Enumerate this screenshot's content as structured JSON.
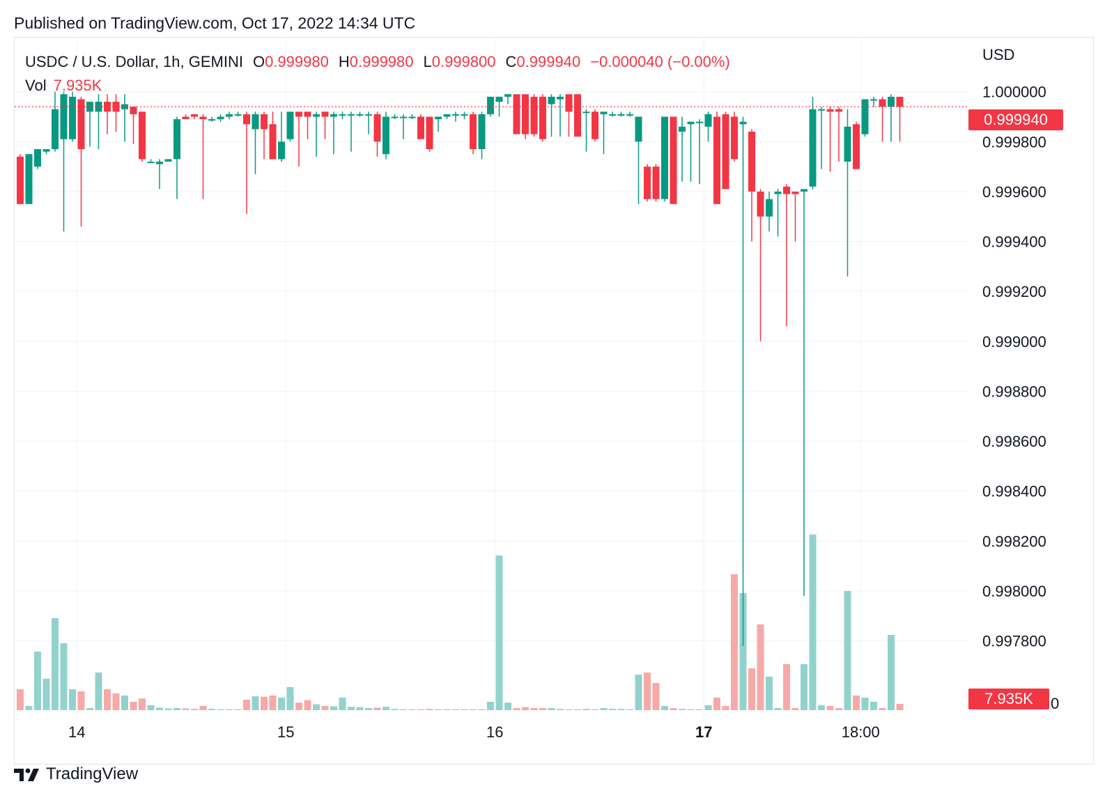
{
  "header": {
    "published_text": "Published on TradingView.com, Oct 17, 2022 14:34 UTC"
  },
  "legend": {
    "symbol": "USDC / U.S. Dollar, 1h, GEMINI",
    "open_label": "O",
    "open_value": "0.999980",
    "high_label": "H",
    "high_value": "0.999980",
    "low_label": "L",
    "low_value": "0.999800",
    "close_label": "C",
    "close_value": "0.999940",
    "change": "−0.000040 (−0.00%)",
    "volume_label": "Vol",
    "volume_value": "7.935K"
  },
  "axis": {
    "currency": "USD",
    "last_price_tag": "0.999940",
    "volume_tag": "7.935K"
  },
  "footer": {
    "brand": "TradingView"
  },
  "colors": {
    "up": "#089981",
    "down": "#f23645",
    "up_volume": "#92d2cc",
    "down_volume": "#f7a9a7",
    "grid": "#f0f3fa"
  },
  "chart_data": {
    "type": "candlestick",
    "timeframe": "1h",
    "y_ticks": [
      "1.000000",
      "0.999800",
      "0.999600",
      "0.999400",
      "0.999200",
      "0.999000",
      "0.998800",
      "0.998600",
      "0.998400",
      "0.998200",
      "0.998000",
      "0.997800"
    ],
    "y_range": [
      0.99773,
      1.00002
    ],
    "volume_zero_label": "0",
    "x_ticks": [
      {
        "label": "14",
        "index": 6.5,
        "bold": false
      },
      {
        "label": "15",
        "index": 30.5,
        "bold": false
      },
      {
        "label": "16",
        "index": 54.5,
        "bold": false
      },
      {
        "label": "17",
        "index": 78.5,
        "bold": true
      },
      {
        "label": "18:00",
        "index": 96.5,
        "bold": false
      }
    ],
    "last_price": 0.99994,
    "candles": [
      {
        "o": 0.99974,
        "h": 0.99975,
        "l": 0.99955,
        "c": 0.99955,
        "v": 0.5
      },
      {
        "o": 0.99955,
        "h": 0.99975,
        "l": 0.99955,
        "c": 0.99975,
        "v": 0.1
      },
      {
        "o": 0.9997,
        "h": 0.99977,
        "l": 0.99969,
        "c": 0.99977,
        "v": 1.4
      },
      {
        "o": 0.99976,
        "h": 0.99977,
        "l": 0.99975,
        "c": 0.99977,
        "v": 0.75
      },
      {
        "o": 0.99977,
        "h": 1.0,
        "l": 0.99976,
        "c": 0.99993,
        "v": 2.2
      },
      {
        "o": 0.99981,
        "h": 1.0,
        "l": 0.99944,
        "c": 0.99999,
        "v": 1.6
      },
      {
        "o": 0.99981,
        "h": 1.0,
        "l": 0.9998,
        "c": 0.99998,
        "v": 0.5
      },
      {
        "o": 0.99997,
        "h": 0.99998,
        "l": 0.99946,
        "c": 0.99977,
        "v": 0.45
      },
      {
        "o": 0.99992,
        "h": 0.99996,
        "l": 0.99978,
        "c": 0.99996,
        "v": 0.05
      },
      {
        "o": 0.99992,
        "h": 0.99999,
        "l": 0.99977,
        "c": 0.99996,
        "v": 0.9
      },
      {
        "o": 0.99996,
        "h": 0.99999,
        "l": 0.99983,
        "c": 0.99992,
        "v": 0.5
      },
      {
        "o": 0.99996,
        "h": 0.99999,
        "l": 0.99984,
        "c": 0.99992,
        "v": 0.4
      },
      {
        "o": 0.99993,
        "h": 0.99999,
        "l": 0.9998,
        "c": 0.99995,
        "v": 0.35
      },
      {
        "o": 0.99994,
        "h": 0.99994,
        "l": 0.99979,
        "c": 0.99991,
        "v": 0.2
      },
      {
        "o": 0.99992,
        "h": 0.99992,
        "l": 0.99972,
        "c": 0.99973,
        "v": 0.28
      },
      {
        "o": 0.99972,
        "h": 0.99973,
        "l": 0.99972,
        "c": 0.99972,
        "v": 0.12
      },
      {
        "o": 0.99971,
        "h": 0.99973,
        "l": 0.99961,
        "c": 0.99972,
        "v": 0.06
      },
      {
        "o": 0.99972,
        "h": 0.99973,
        "l": 0.99972,
        "c": 0.99973,
        "v": 0.04
      },
      {
        "o": 0.99973,
        "h": 0.9999,
        "l": 0.99957,
        "c": 0.99989,
        "v": 0.05
      },
      {
        "o": 0.9999,
        "h": 0.99991,
        "l": 0.99989,
        "c": 0.99989,
        "v": 0.04
      },
      {
        "o": 0.99991,
        "h": 0.99991,
        "l": 0.99989,
        "c": 0.9999,
        "v": 0.03
      },
      {
        "o": 0.9999,
        "h": 0.99991,
        "l": 0.99957,
        "c": 0.99989,
        "v": 0.1
      },
      {
        "o": 0.99989,
        "h": 0.9999,
        "l": 0.99988,
        "c": 0.99989,
        "v": 0.03
      },
      {
        "o": 0.99989,
        "h": 0.99991,
        "l": 0.99988,
        "c": 0.9999,
        "v": 0.02
      },
      {
        "o": 0.9999,
        "h": 0.99992,
        "l": 0.99989,
        "c": 0.99991,
        "v": 0.02
      },
      {
        "o": 0.99991,
        "h": 0.99992,
        "l": 0.9999,
        "c": 0.99991,
        "v": 0.02
      },
      {
        "o": 0.99991,
        "h": 0.99992,
        "l": 0.99951,
        "c": 0.99987,
        "v": 0.25
      },
      {
        "o": 0.99985,
        "h": 0.99992,
        "l": 0.99967,
        "c": 0.99991,
        "v": 0.33
      },
      {
        "o": 0.99991,
        "h": 0.99992,
        "l": 0.99973,
        "c": 0.99985,
        "v": 0.32
      },
      {
        "o": 0.99987,
        "h": 0.99992,
        "l": 0.99973,
        "c": 0.99973,
        "v": 0.35
      },
      {
        "o": 0.99973,
        "h": 0.99992,
        "l": 0.99972,
        "c": 0.9998,
        "v": 0.3
      },
      {
        "o": 0.99981,
        "h": 0.99992,
        "l": 0.9998,
        "c": 0.99992,
        "v": 0.55
      },
      {
        "o": 0.99992,
        "h": 0.99992,
        "l": 0.9997,
        "c": 0.9999,
        "v": 0.18
      },
      {
        "o": 0.99992,
        "h": 0.99992,
        "l": 0.99981,
        "c": 0.9999,
        "v": 0.24
      },
      {
        "o": 0.9999,
        "h": 0.99992,
        "l": 0.99974,
        "c": 0.99991,
        "v": 0.14
      },
      {
        "o": 0.99992,
        "h": 0.99992,
        "l": 0.99981,
        "c": 0.9999,
        "v": 0.1
      },
      {
        "o": 0.9999,
        "h": 0.99992,
        "l": 0.99975,
        "c": 0.99991,
        "v": 0.09
      },
      {
        "o": 0.99991,
        "h": 0.99992,
        "l": 0.99989,
        "c": 0.99991,
        "v": 0.3
      },
      {
        "o": 0.99991,
        "h": 0.99992,
        "l": 0.99976,
        "c": 0.99991,
        "v": 0.08
      },
      {
        "o": 0.99991,
        "h": 0.99992,
        "l": 0.9999,
        "c": 0.99991,
        "v": 0.07
      },
      {
        "o": 0.99991,
        "h": 0.99992,
        "l": 0.99983,
        "c": 0.99991,
        "v": 0.05
      },
      {
        "o": 0.99991,
        "h": 0.99992,
        "l": 0.99974,
        "c": 0.9998,
        "v": 0.06
      },
      {
        "o": 0.99975,
        "h": 0.99992,
        "l": 0.99973,
        "c": 0.9999,
        "v": 0.08
      },
      {
        "o": 0.9999,
        "h": 0.99991,
        "l": 0.99989,
        "c": 0.9999,
        "v": 0.03
      },
      {
        "o": 0.9999,
        "h": 0.99991,
        "l": 0.99981,
        "c": 0.9999,
        "v": 0.02
      },
      {
        "o": 0.9999,
        "h": 0.99991,
        "l": 0.99989,
        "c": 0.9999,
        "v": 0.02
      },
      {
        "o": 0.9999,
        "h": 0.99991,
        "l": 0.99982,
        "c": 0.99981,
        "v": 0.02
      },
      {
        "o": 0.9999,
        "h": 0.9999,
        "l": 0.99976,
        "c": 0.99977,
        "v": 0.03
      },
      {
        "o": 0.99989,
        "h": 0.9999,
        "l": 0.99984,
        "c": 0.9999,
        "v": 0.02
      },
      {
        "o": 0.9999,
        "h": 0.99991,
        "l": 0.99989,
        "c": 0.99991,
        "v": 0.02
      },
      {
        "o": 0.99991,
        "h": 0.99992,
        "l": 0.99988,
        "c": 0.99991,
        "v": 0.02
      },
      {
        "o": 0.99991,
        "h": 0.99992,
        "l": 0.99989,
        "c": 0.99991,
        "v": 0.02
      },
      {
        "o": 0.99991,
        "h": 0.99992,
        "l": 0.99975,
        "c": 0.99977,
        "v": 0.02
      },
      {
        "o": 0.99977,
        "h": 0.99992,
        "l": 0.99973,
        "c": 0.99991,
        "v": 0.02
      },
      {
        "o": 0.99991,
        "h": 0.99998,
        "l": 0.9999,
        "c": 0.99998,
        "v": 0.2
      },
      {
        "o": 0.99996,
        "h": 0.99998,
        "l": 0.9999,
        "c": 0.99998,
        "v": 3.7
      },
      {
        "o": 0.99998,
        "h": 0.99999,
        "l": 0.99995,
        "c": 0.99999,
        "v": 0.18
      },
      {
        "o": 0.99999,
        "h": 0.99999,
        "l": 0.99983,
        "c": 0.99983,
        "v": 0.05
      },
      {
        "o": 0.99999,
        "h": 0.99999,
        "l": 0.99981,
        "c": 0.99983,
        "v": 0.07
      },
      {
        "o": 0.99998,
        "h": 0.99999,
        "l": 0.99982,
        "c": 0.99983,
        "v": 0.05
      },
      {
        "o": 0.99998,
        "h": 0.99999,
        "l": 0.9998,
        "c": 0.99981,
        "v": 0.05
      },
      {
        "o": 0.99995,
        "h": 0.99999,
        "l": 0.99982,
        "c": 0.99998,
        "v": 0.05
      },
      {
        "o": 0.99997,
        "h": 0.99999,
        "l": 0.99982,
        "c": 0.99998,
        "v": 0.03
      },
      {
        "o": 0.99999,
        "h": 0.99999,
        "l": 0.99982,
        "c": 0.99992,
        "v": 0.02
      },
      {
        "o": 0.99999,
        "h": 0.99999,
        "l": 0.99982,
        "c": 0.99982,
        "v": 0.02
      },
      {
        "o": 0.99992,
        "h": 0.99993,
        "l": 0.99976,
        "c": 0.99992,
        "v": 0.03
      },
      {
        "o": 0.99992,
        "h": 0.99993,
        "l": 0.9998,
        "c": 0.99981,
        "v": 0.02
      },
      {
        "o": 0.99991,
        "h": 0.99992,
        "l": 0.99975,
        "c": 0.99992,
        "v": 0.05
      },
      {
        "o": 0.99991,
        "h": 0.99992,
        "l": 0.9999,
        "c": 0.99991,
        "v": 0.03
      },
      {
        "o": 0.99991,
        "h": 0.99992,
        "l": 0.9999,
        "c": 0.99991,
        "v": 0.03
      },
      {
        "o": 0.99991,
        "h": 0.99992,
        "l": 0.9999,
        "c": 0.99991,
        "v": 0.02
      },
      {
        "o": 0.9998,
        "h": 0.9999,
        "l": 0.99955,
        "c": 0.9999,
        "v": 0.85
      },
      {
        "o": 0.9997,
        "h": 0.99971,
        "l": 0.99956,
        "c": 0.99957,
        "v": 0.9
      },
      {
        "o": 0.9997,
        "h": 0.99971,
        "l": 0.99956,
        "c": 0.99957,
        "v": 0.65
      },
      {
        "o": 0.99957,
        "h": 0.9999,
        "l": 0.99956,
        "c": 0.9999,
        "v": 0.1
      },
      {
        "o": 0.9999,
        "h": 0.9999,
        "l": 0.99955,
        "c": 0.99955,
        "v": 0.05
      },
      {
        "o": 0.99984,
        "h": 0.9999,
        "l": 0.99964,
        "c": 0.99986,
        "v": 0.03
      },
      {
        "o": 0.99987,
        "h": 0.99988,
        "l": 0.99964,
        "c": 0.99988,
        "v": 0.02
      },
      {
        "o": 0.99988,
        "h": 0.99989,
        "l": 0.99963,
        "c": 0.99988,
        "v": 0.02
      },
      {
        "o": 0.99986,
        "h": 0.99992,
        "l": 0.9998,
        "c": 0.99991,
        "v": 0.12
      },
      {
        "o": 0.9999,
        "h": 0.99992,
        "l": 0.99955,
        "c": 0.99955,
        "v": 0.3
      },
      {
        "o": 0.99991,
        "h": 0.99992,
        "l": 0.99961,
        "c": 0.99961,
        "v": 0.1
      },
      {
        "o": 0.9999,
        "h": 0.99992,
        "l": 0.99972,
        "c": 0.99973,
        "v": 3.25
      },
      {
        "o": 0.99987,
        "h": 0.9999,
        "l": 0.99778,
        "c": 0.99988,
        "v": 2.8
      },
      {
        "o": 0.99984,
        "h": 0.99985,
        "l": 0.9994,
        "c": 0.9996,
        "v": 1.0
      },
      {
        "o": 0.9996,
        "h": 0.99961,
        "l": 0.999,
        "c": 0.9995,
        "v": 2.05
      },
      {
        "o": 0.9995,
        "h": 0.9996,
        "l": 0.99944,
        "c": 0.99957,
        "v": 0.8
      },
      {
        "o": 0.99959,
        "h": 0.99961,
        "l": 0.99942,
        "c": 0.9996,
        "v": 0.05
      },
      {
        "o": 0.99962,
        "h": 0.99963,
        "l": 0.99906,
        "c": 0.99959,
        "v": 1.1
      },
      {
        "o": 0.9996,
        "h": 0.9996,
        "l": 0.9994,
        "c": 0.99959,
        "v": 0.05
      },
      {
        "o": 0.9996,
        "h": 0.9996,
        "l": 0.99798,
        "c": 0.99961,
        "v": 1.1
      },
      {
        "o": 0.99962,
        "h": 0.99998,
        "l": 0.99961,
        "c": 0.99993,
        "v": 4.2
      },
      {
        "o": 0.99993,
        "h": 0.99994,
        "l": 0.99969,
        "c": 0.99993,
        "v": 0.12
      },
      {
        "o": 0.99993,
        "h": 0.99994,
        "l": 0.99968,
        "c": 0.99992,
        "v": 0.1
      },
      {
        "o": 0.99993,
        "h": 0.99994,
        "l": 0.99972,
        "c": 0.99992,
        "v": 0.05
      },
      {
        "o": 0.99972,
        "h": 0.99993,
        "l": 0.99926,
        "c": 0.99986,
        "v": 2.85
      },
      {
        "o": 0.99987,
        "h": 0.99988,
        "l": 0.99969,
        "c": 0.99969,
        "v": 0.35
      },
      {
        "o": 0.99983,
        "h": 0.99997,
        "l": 0.99982,
        "c": 0.99997,
        "v": 0.3
      },
      {
        "o": 0.99997,
        "h": 0.99998,
        "l": 0.99994,
        "c": 0.99997,
        "v": 0.2
      },
      {
        "o": 0.99997,
        "h": 0.99998,
        "l": 0.9998,
        "c": 0.99994,
        "v": 0.05
      },
      {
        "o": 0.99994,
        "h": 0.99999,
        "l": 0.9998,
        "c": 0.99998,
        "v": 1.8
      },
      {
        "o": 0.99998,
        "h": 0.99998,
        "l": 0.9998,
        "c": 0.99994,
        "v": 0.15
      }
    ]
  }
}
